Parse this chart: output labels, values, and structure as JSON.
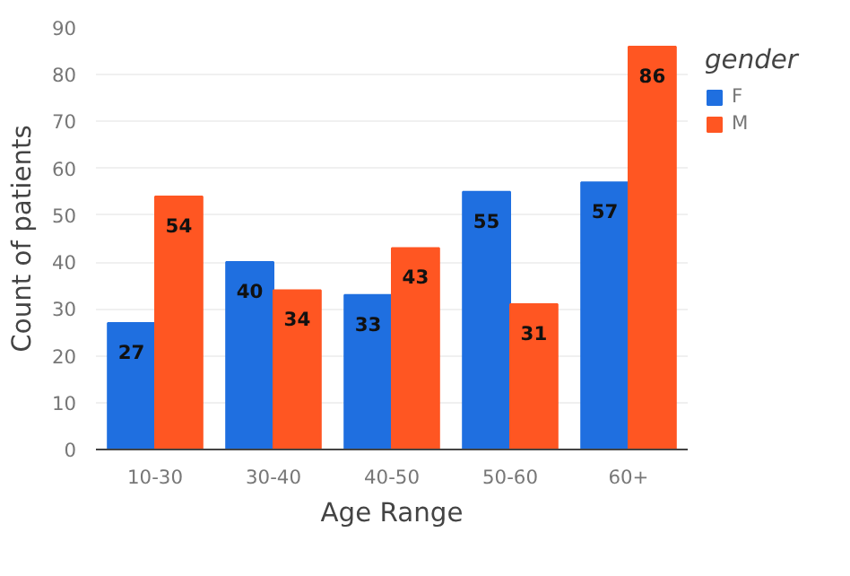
{
  "chart_data": {
    "type": "bar",
    "xlabel": "Age Range",
    "ylabel": "Count of patients",
    "legend_title": "gender",
    "categories": [
      "10-30",
      "30-40",
      "40-50",
      "50-60",
      "60+"
    ],
    "series": [
      {
        "name": "F",
        "color": "#1f6fe0",
        "values": [
          27,
          40,
          33,
          55,
          57
        ]
      },
      {
        "name": "M",
        "color": "#ff5622",
        "values": [
          54,
          34,
          43,
          31,
          86
        ]
      }
    ],
    "ylim": [
      0,
      90
    ],
    "yticks": [
      0,
      10,
      20,
      30,
      40,
      50,
      60,
      70,
      80,
      90
    ],
    "grid": "y",
    "legend": "top right",
    "data_labels": true
  }
}
